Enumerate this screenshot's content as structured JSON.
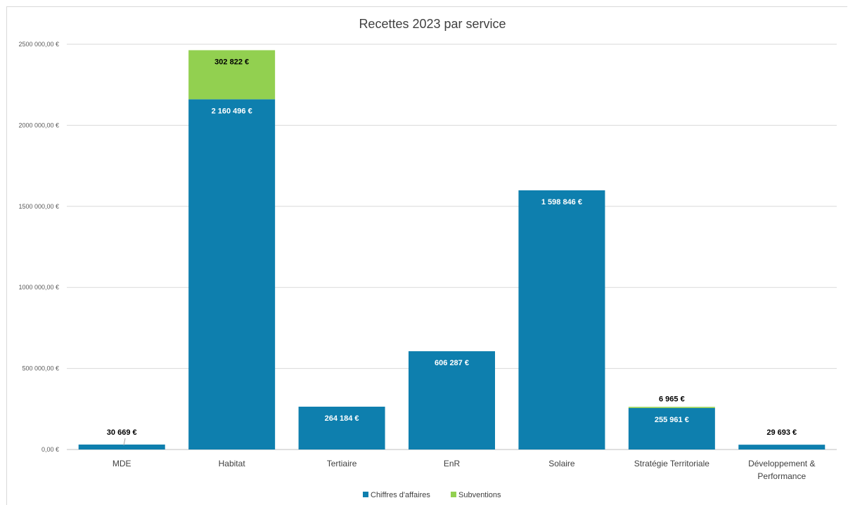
{
  "chart_data": {
    "type": "bar",
    "stacked": true,
    "title": "Recettes 2023 par service",
    "xlabel": "",
    "ylabel": "",
    "categories": [
      "MDE",
      "Habitat",
      "Tertiaire",
      "EnR",
      "Solaire",
      "Stratégie Territoriale",
      "Développement & Performance"
    ],
    "category_lines": [
      [
        "MDE"
      ],
      [
        "Habitat"
      ],
      [
        "Tertiaire"
      ],
      [
        "EnR"
      ],
      [
        "Solaire"
      ],
      [
        "Stratégie Territoriale"
      ],
      [
        "Développement &",
        "Performance"
      ]
    ],
    "series": [
      {
        "name": "Chiffres d'affaires",
        "color": "#0e7fae",
        "values": [
          30669,
          2160496,
          264184,
          606287,
          1598846,
          255961,
          29693
        ],
        "labels": [
          "30 669 €",
          "2 160 496 €",
          "264 184 €",
          "606 287 €",
          "1 598 846 €",
          "255 961 €",
          "29 693 €"
        ]
      },
      {
        "name": "Subventions",
        "color": "#92d050",
        "values": [
          0,
          302822,
          0,
          0,
          0,
          6965,
          0
        ],
        "labels": [
          "",
          "302 822 €",
          "",
          "",
          "",
          "6 965 €",
          ""
        ]
      }
    ],
    "ylim": [
      0,
      2500000
    ],
    "yticks": [
      0,
      500000,
      1000000,
      1500000,
      2000000,
      2500000
    ],
    "ytick_labels": [
      "0,00 €",
      "500 000,00 €",
      "1000 000,00 €",
      "1500 000,00 €",
      "2000 000,00 €",
      "2500 000,00 €"
    ],
    "grid": true,
    "legend": "bottom"
  }
}
